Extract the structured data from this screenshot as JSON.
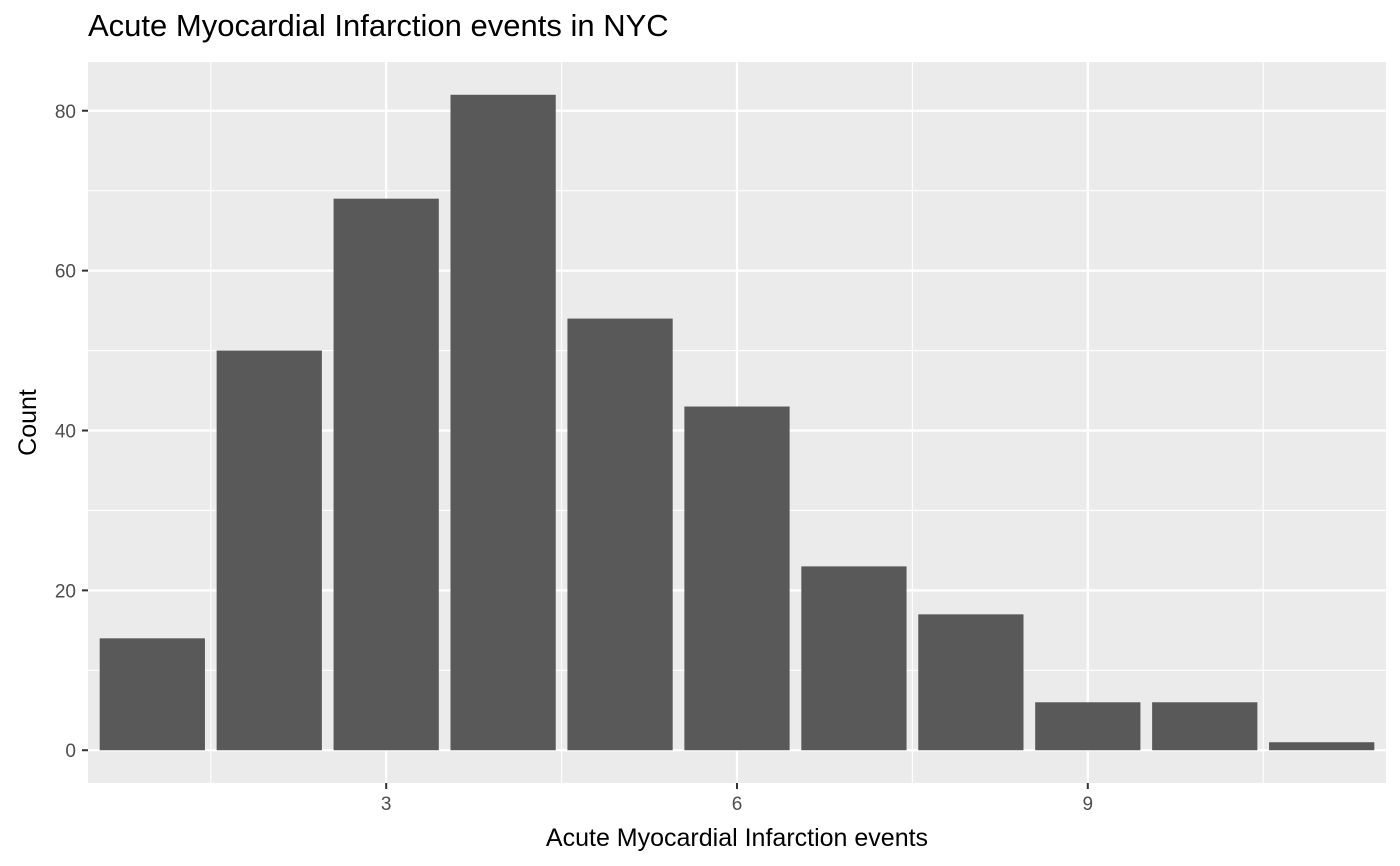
{
  "chart_data": {
    "type": "bar",
    "title": "Acute Myocardial Infarction events in NYC",
    "xlabel": "Acute Myocardial Infarction events",
    "ylabel": "Count",
    "x": [
      1,
      2,
      3,
      4,
      5,
      6,
      7,
      8,
      9,
      10,
      11
    ],
    "values": [
      14,
      50,
      69,
      82,
      54,
      43,
      23,
      17,
      6,
      6,
      1
    ],
    "xlim": [
      0.45,
      11.55
    ],
    "ylim": [
      -4.1,
      86.1
    ],
    "x_ticks": [
      3,
      6,
      9
    ],
    "x_tick_labels": [
      "3",
      "6",
      "9"
    ],
    "y_ticks": [
      0,
      20,
      40,
      60,
      80
    ],
    "y_tick_labels": [
      "0",
      "20",
      "40",
      "60",
      "80"
    ],
    "x_minor_ticks": [
      1.5,
      4.5,
      7.5,
      10.5
    ],
    "y_minor_ticks": [
      10,
      30,
      50,
      70
    ],
    "grid": true,
    "colors": {
      "bar": "#595959",
      "panel": "#ebebeb",
      "grid": "#ffffff",
      "tick_text": "#4d4d4d",
      "tick_mark": "#333333"
    }
  }
}
